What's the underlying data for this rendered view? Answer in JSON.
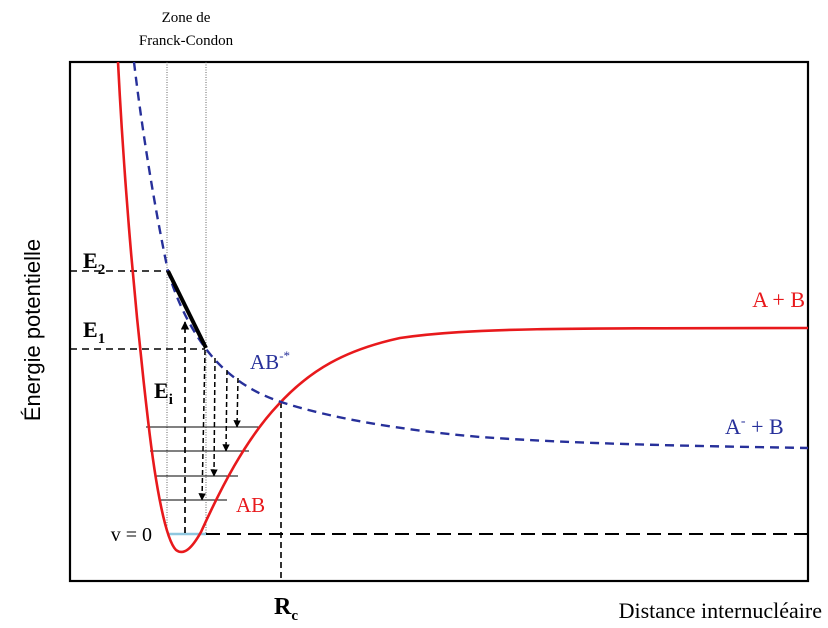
{
  "colors": {
    "bound_curve": "#e8191c",
    "repulsive_curve": "#27309a",
    "ink": "#000000",
    "v0_segment": "#8fc7df"
  },
  "labels": {
    "zone_line1": "Zone de",
    "zone_line2": "Franck-Condon",
    "y_axis": "Énergie potentielle",
    "x_axis": "Distance internucléaire",
    "e2": "E",
    "e2_sub": "2",
    "e1": "E",
    "e1_sub": "1",
    "ei": "E",
    "ei_sub": "i",
    "v0": "v = 0",
    "rc": "R",
    "rc_sub": "c",
    "ab": "AB",
    "ab_star": "AB",
    "ab_star_sup": "-*",
    "a_plus_b": "A + B",
    "a_minus_plus_b_a": "A",
    "a_minus_plus_b_sup": "-",
    "a_minus_plus_b_rest": " + B"
  },
  "icons": {
    "ei_arrow": "up-arrow-icon",
    "relaxation_arrows": "down-arrow-icon"
  }
}
